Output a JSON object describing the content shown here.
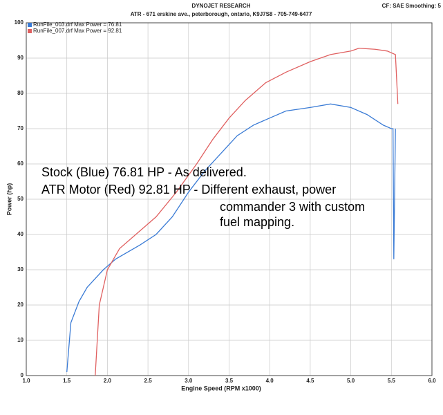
{
  "chart_data": {
    "type": "line",
    "title": "DYNOJET RESEARCH",
    "subtitle": "ATR - 671 erskine ave., peterborough, ontario, K9J7S8 - 705-749-6477",
    "settings_label": "CF: SAE Smoothing: 5",
    "x_label": "Engine Speed (RPM x1000)",
    "y_label": "Power (hp)",
    "annotations": [
      "Stock (Blue) 76.81 HP - As delivered.",
      "ATR Motor (Red) 92.81 HP - Different exhaust, power",
      "commander 3 with custom",
      "fuel mapping."
    ],
    "xlim": [
      1,
      6
    ],
    "ylim": [
      0,
      100
    ],
    "xticks": [
      {
        "value": 1,
        "label": "1.0"
      },
      {
        "value": 1.5,
        "label": "1.5"
      },
      {
        "value": 2,
        "label": "2.0"
      },
      {
        "value": 2.5,
        "label": "2.5"
      },
      {
        "value": 3,
        "label": "3.0"
      },
      {
        "value": 3.5,
        "label": "3.5"
      },
      {
        "value": 4,
        "label": "4.0"
      },
      {
        "value": 4.5,
        "label": "4.5"
      },
      {
        "value": 5,
        "label": "5.0"
      },
      {
        "value": 5.5,
        "label": "5.5"
      },
      {
        "value": 6,
        "label": "6.0"
      }
    ],
    "yticks": [
      0,
      10,
      20,
      30,
      40,
      50,
      60,
      70,
      80,
      90,
      100
    ],
    "grid": true,
    "series": [
      {
        "name": "RunFile_003.drf Max Power = 76.81",
        "color": "#3a7bd5",
        "x": [
          1.5,
          1.55,
          1.65,
          1.75,
          1.95,
          2.1,
          2.4,
          2.6,
          2.8,
          3.0,
          3.2,
          3.4,
          3.6,
          3.8,
          4.0,
          4.2,
          4.5,
          4.75,
          5.0,
          5.2,
          5.4,
          5.5,
          5.52,
          5.53,
          5.55
        ],
        "values": [
          1,
          15,
          21,
          25,
          30,
          33,
          37,
          40,
          45,
          52,
          58,
          63,
          68,
          71,
          73,
          75,
          76,
          77,
          76,
          74,
          71,
          70,
          70,
          33,
          70
        ]
      },
      {
        "name": "RunFile_007.drf Max Power = 92.81",
        "color": "#e06060",
        "x": [
          1.85,
          1.9,
          2.0,
          2.15,
          2.35,
          2.6,
          2.85,
          3.1,
          3.3,
          3.5,
          3.7,
          3.95,
          4.2,
          4.5,
          4.75,
          5.0,
          5.1,
          5.3,
          5.45,
          5.55,
          5.58
        ],
        "values": [
          0,
          20,
          30,
          36,
          40,
          45,
          52,
          60,
          67,
          73,
          78,
          83,
          86,
          89,
          91,
          92,
          92.8,
          92.5,
          92,
          91,
          77
        ]
      }
    ]
  }
}
